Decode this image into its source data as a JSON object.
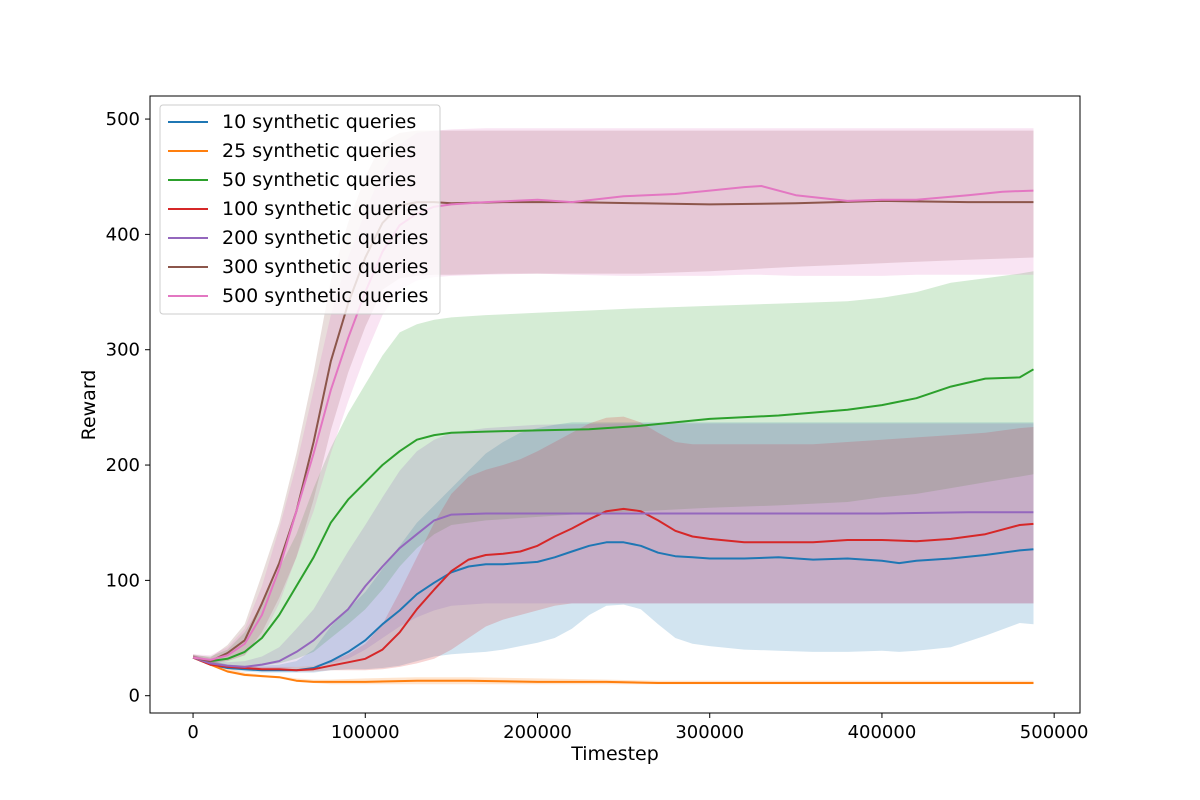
{
  "chart_data": {
    "type": "line",
    "xlabel": "Timestep",
    "ylabel": "Reward",
    "xlim": [
      -25000,
      515000
    ],
    "ylim": [
      -15,
      520
    ],
    "xticks": [
      0,
      100000,
      200000,
      300000,
      400000,
      500000
    ],
    "xtick_labels": [
      "0",
      "100000",
      "200000",
      "300000",
      "400000",
      "500000"
    ],
    "yticks": [
      0,
      100,
      200,
      300,
      400,
      500
    ],
    "ytick_labels": [
      "0",
      "100",
      "200",
      "300",
      "400",
      "500"
    ],
    "grid": false,
    "legend_position": "upper-left",
    "series": [
      {
        "name": "10 synthetic queries",
        "color": "#1f77b4",
        "x": [
          0,
          10000,
          20000,
          30000,
          40000,
          50000,
          60000,
          70000,
          80000,
          90000,
          100000,
          110000,
          120000,
          130000,
          140000,
          150000,
          160000,
          170000,
          180000,
          190000,
          200000,
          210000,
          220000,
          230000,
          240000,
          250000,
          260000,
          270000,
          280000,
          290000,
          300000,
          320000,
          340000,
          360000,
          380000,
          400000,
          410000,
          420000,
          440000,
          460000,
          480000,
          488000
        ],
        "y": [
          33,
          27,
          24,
          23,
          22,
          22,
          22,
          24,
          30,
          38,
          48,
          62,
          74,
          88,
          98,
          107,
          112,
          114,
          114,
          115,
          116,
          120,
          125,
          130,
          133,
          133,
          130,
          124,
          121,
          120,
          119,
          119,
          120,
          118,
          119,
          117,
          115,
          117,
          119,
          122,
          126,
          127
        ],
        "lower": [
          33,
          27,
          23,
          21,
          20,
          20,
          20,
          20,
          22,
          23,
          23,
          24,
          26,
          30,
          34,
          36,
          37,
          38,
          40,
          43,
          46,
          50,
          58,
          70,
          78,
          79,
          75,
          62,
          50,
          45,
          43,
          40,
          39,
          38,
          38,
          39,
          38,
          39,
          42,
          52,
          63,
          62
        ],
        "upper": [
          35,
          31,
          27,
          26,
          26,
          27,
          30,
          40,
          60,
          75,
          90,
          110,
          130,
          150,
          165,
          180,
          195,
          210,
          220,
          228,
          232,
          235,
          237,
          237,
          237,
          237,
          237,
          237,
          237,
          237,
          237,
          237,
          237,
          237,
          237,
          237,
          237,
          237,
          237,
          237,
          237,
          237
        ]
      },
      {
        "name": "25 synthetic queries",
        "color": "#ff7f0e",
        "x": [
          0,
          10000,
          20000,
          30000,
          40000,
          50000,
          60000,
          70000,
          80000,
          100000,
          130000,
          160000,
          200000,
          240000,
          270000,
          300000,
          350000,
          400000,
          450000,
          488000
        ],
        "y": [
          33,
          27,
          21,
          18,
          17,
          16,
          13,
          12,
          12,
          12,
          13,
          13,
          12,
          12,
          11,
          11,
          11,
          11,
          11,
          11
        ],
        "lower": [
          32,
          26,
          20,
          17,
          16,
          15,
          12,
          11,
          10,
          10,
          10,
          10,
          10,
          10,
          10,
          10,
          10,
          10,
          10,
          10
        ],
        "upper": [
          35,
          30,
          24,
          20,
          18,
          17,
          15,
          14,
          14,
          15,
          16,
          16,
          15,
          14,
          13,
          13,
          13,
          13,
          13,
          13
        ]
      },
      {
        "name": "50 synthetic queries",
        "color": "#2ca02c",
        "x": [
          0,
          10000,
          20000,
          30000,
          40000,
          50000,
          60000,
          70000,
          80000,
          90000,
          100000,
          110000,
          120000,
          130000,
          140000,
          150000,
          170000,
          200000,
          230000,
          260000,
          300000,
          340000,
          380000,
          400000,
          420000,
          440000,
          460000,
          480000,
          488000
        ],
        "y": [
          33,
          30,
          32,
          38,
          50,
          70,
          95,
          120,
          150,
          170,
          185,
          200,
          212,
          222,
          226,
          228,
          229,
          230,
          231,
          234,
          240,
          243,
          248,
          252,
          258,
          268,
          275,
          276,
          283
        ],
        "lower": [
          33,
          28,
          26,
          25,
          26,
          28,
          32,
          38,
          50,
          62,
          75,
          92,
          112,
          128,
          140,
          148,
          152,
          155,
          158,
          160,
          163,
          165,
          168,
          172,
          175,
          180,
          185,
          190,
          192
        ],
        "upper": [
          35,
          34,
          40,
          55,
          80,
          110,
          140,
          180,
          215,
          245,
          270,
          295,
          315,
          322,
          326,
          328,
          330,
          332,
          334,
          336,
          338,
          340,
          342,
          345,
          350,
          358,
          362,
          366,
          368
        ]
      },
      {
        "name": "100 synthetic queries",
        "color": "#d62728",
        "x": [
          0,
          10000,
          20000,
          30000,
          40000,
          50000,
          60000,
          70000,
          80000,
          90000,
          100000,
          110000,
          120000,
          130000,
          140000,
          150000,
          160000,
          170000,
          180000,
          190000,
          200000,
          210000,
          220000,
          230000,
          240000,
          250000,
          260000,
          270000,
          280000,
          290000,
          300000,
          320000,
          340000,
          360000,
          380000,
          400000,
          420000,
          440000,
          460000,
          480000,
          488000
        ],
        "y": [
          33,
          27,
          25,
          24,
          23,
          23,
          22,
          23,
          26,
          29,
          32,
          40,
          55,
          75,
          92,
          108,
          118,
          122,
          123,
          125,
          130,
          138,
          145,
          153,
          160,
          162,
          160,
          152,
          143,
          138,
          136,
          133,
          133,
          133,
          135,
          135,
          134,
          136,
          140,
          148,
          149
        ],
        "lower": [
          32,
          26,
          24,
          23,
          22,
          22,
          21,
          21,
          22,
          22,
          22,
          23,
          25,
          28,
          32,
          40,
          50,
          60,
          66,
          70,
          74,
          78,
          80,
          80,
          80,
          80,
          80,
          80,
          80,
          80,
          80,
          80,
          80,
          80,
          80,
          80,
          80,
          80,
          80,
          80,
          80
        ],
        "upper": [
          35,
          30,
          27,
          26,
          25,
          25,
          25,
          26,
          30,
          36,
          45,
          62,
          90,
          120,
          150,
          175,
          190,
          196,
          200,
          205,
          212,
          220,
          228,
          236,
          241,
          242,
          237,
          228,
          220,
          218,
          218,
          218,
          218,
          218,
          220,
          222,
          224,
          226,
          228,
          232,
          233
        ]
      },
      {
        "name": "200 synthetic queries",
        "color": "#9467bd",
        "x": [
          0,
          10000,
          20000,
          30000,
          40000,
          50000,
          60000,
          70000,
          80000,
          90000,
          100000,
          110000,
          120000,
          130000,
          140000,
          150000,
          170000,
          200000,
          250000,
          300000,
          350000,
          400000,
          450000,
          488000
        ],
        "y": [
          33,
          28,
          26,
          25,
          27,
          30,
          38,
          48,
          62,
          75,
          95,
          112,
          128,
          140,
          152,
          157,
          158,
          158,
          158,
          158,
          158,
          158,
          159,
          159
        ],
        "lower": [
          33,
          27,
          25,
          24,
          24,
          24,
          25,
          26,
          28,
          32,
          40,
          50,
          60,
          68,
          74,
          78,
          80,
          80,
          80,
          80,
          80,
          80,
          80,
          80
        ],
        "upper": [
          35,
          31,
          29,
          30,
          34,
          42,
          58,
          75,
          100,
          125,
          148,
          172,
          195,
          212,
          222,
          228,
          232,
          235,
          236,
          236,
          236,
          236,
          236,
          236
        ]
      },
      {
        "name": "300 synthetic queries",
        "color": "#8c564b",
        "x": [
          0,
          10000,
          20000,
          30000,
          40000,
          50000,
          60000,
          70000,
          80000,
          90000,
          100000,
          110000,
          120000,
          130000,
          140000,
          150000,
          180000,
          220000,
          260000,
          300000,
          350000,
          400000,
          450000,
          488000
        ],
        "y": [
          33,
          30,
          37,
          48,
          80,
          115,
          160,
          220,
          290,
          340,
          380,
          410,
          425,
          428,
          428,
          427,
          428,
          428,
          427,
          426,
          427,
          429,
          428,
          428
        ],
        "lower": [
          32,
          28,
          30,
          35,
          55,
          85,
          120,
          170,
          230,
          280,
          320,
          352,
          362,
          364,
          365,
          365,
          366,
          366,
          366,
          368,
          372,
          375,
          378,
          380
        ],
        "upper": [
          36,
          33,
          44,
          62,
          105,
          150,
          210,
          280,
          360,
          410,
          450,
          480,
          488,
          490,
          490,
          490,
          490,
          490,
          490,
          490,
          490,
          490,
          490,
          490
        ]
      },
      {
        "name": "500 synthetic queries",
        "color": "#e377c2",
        "x": [
          0,
          10000,
          20000,
          30000,
          40000,
          50000,
          60000,
          70000,
          80000,
          90000,
          100000,
          110000,
          120000,
          130000,
          140000,
          150000,
          170000,
          200000,
          220000,
          250000,
          280000,
          300000,
          320000,
          330000,
          350000,
          380000,
          400000,
          420000,
          450000,
          470000,
          488000
        ],
        "y": [
          33,
          31,
          35,
          45,
          70,
          110,
          160,
          210,
          265,
          310,
          350,
          385,
          408,
          418,
          424,
          426,
          428,
          430,
          428,
          433,
          435,
          438,
          441,
          442,
          434,
          429,
          430,
          430,
          434,
          437,
          438
        ],
        "lower": [
          32,
          29,
          30,
          35,
          50,
          80,
          120,
          160,
          210,
          255,
          295,
          330,
          352,
          360,
          363,
          364,
          365,
          366,
          365,
          364,
          364,
          364,
          365,
          365,
          364,
          364,
          364,
          365,
          365,
          365,
          365
        ],
        "upper": [
          36,
          35,
          42,
          58,
          95,
          145,
          200,
          265,
          330,
          380,
          420,
          455,
          478,
          488,
          490,
          491,
          492,
          492,
          492,
          492,
          492,
          492,
          492,
          492,
          492,
          492,
          492,
          492,
          492,
          492,
          492
        ]
      }
    ]
  }
}
